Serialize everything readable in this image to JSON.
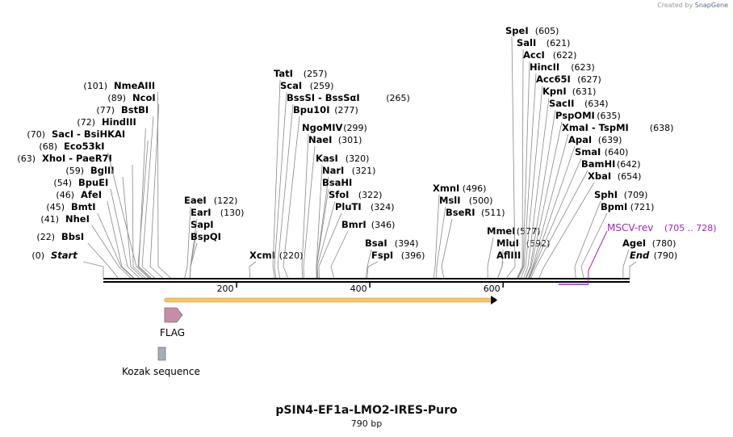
{
  "credit": {
    "prefix": "Created by",
    "brand": "SnapGene"
  },
  "plasmid": {
    "name": "pSIN4-EF1a-LMO2-IRES-Puro",
    "length_label": "790 bp",
    "length": 790
  },
  "axis": {
    "ticks": [
      200,
      400,
      600
    ]
  },
  "enzymes": [
    {
      "name": "Start",
      "pos": "(0)",
      "bp": 0,
      "side": "L",
      "italic": true
    },
    {
      "name": "BbsI",
      "pos": "(22)",
      "bp": 22,
      "side": "L"
    },
    {
      "name": "NheI",
      "pos": "(41)",
      "bp": 41,
      "side": "L"
    },
    {
      "name": "BmtI",
      "pos": "(45)",
      "bp": 45,
      "side": "L"
    },
    {
      "name": "AfeI",
      "pos": "(46)",
      "bp": 46,
      "side": "L"
    },
    {
      "name": "BpuEI",
      "pos": "(54)",
      "bp": 54,
      "side": "L"
    },
    {
      "name": "BglII",
      "pos": "(59)",
      "bp": 59,
      "side": "L"
    },
    {
      "name": "XhoI  -  PaeR7I",
      "pos": "(63)",
      "bp": 63,
      "side": "L"
    },
    {
      "name": "Eco53kI",
      "pos": "(68)",
      "bp": 68,
      "side": "L"
    },
    {
      "name": "SacI  -  BsiHKAI",
      "pos": "(70)",
      "bp": 70,
      "side": "L"
    },
    {
      "name": "HindIII",
      "pos": "(72)",
      "bp": 72,
      "side": "L"
    },
    {
      "name": "BstBI",
      "pos": "(77)",
      "bp": 77,
      "side": "L"
    },
    {
      "name": "NcoI",
      "pos": "(89)",
      "bp": 89,
      "side": "L"
    },
    {
      "name": "NmeAIII",
      "pos": "(101)",
      "bp": 101,
      "side": "L"
    },
    {
      "name": "EaeI",
      "pos": "(122)",
      "bp": 122,
      "side": "R"
    },
    {
      "name": "EarI",
      "pos": "(130)",
      "bp": 130,
      "side": "R"
    },
    {
      "name": "SapI",
      "pos": "",
      "bp": 130,
      "side": "R"
    },
    {
      "name": "BspQI",
      "pos": "",
      "bp": 130,
      "side": "R"
    },
    {
      "name": "XcmI",
      "pos": "(220)",
      "bp": 220,
      "side": "R"
    },
    {
      "name": "TatI",
      "pos": "(257)",
      "bp": 257,
      "side": "R"
    },
    {
      "name": "ScaI",
      "pos": "(259)",
      "bp": 259,
      "side": "R"
    },
    {
      "name": "BssSI  -  BssSαI",
      "pos": "(265)",
      "bp": 265,
      "side": "R"
    },
    {
      "name": "Bpu10I",
      "pos": "(277)",
      "bp": 277,
      "side": "R"
    },
    {
      "name": "NgoMIV",
      "pos": "(299)",
      "bp": 299,
      "side": "R"
    },
    {
      "name": "NaeI",
      "pos": "(301)",
      "bp": 301,
      "side": "R"
    },
    {
      "name": "KasI",
      "pos": "(320)",
      "bp": 320,
      "side": "R"
    },
    {
      "name": "NarI",
      "pos": "(321)",
      "bp": 321,
      "side": "R"
    },
    {
      "name": "BsaHI",
      "pos": "",
      "bp": 321,
      "side": "R"
    },
    {
      "name": "SfoI",
      "pos": "(322)",
      "bp": 322,
      "side": "R"
    },
    {
      "name": "PluTI",
      "pos": "(324)",
      "bp": 324,
      "side": "R"
    },
    {
      "name": "BmrI",
      "pos": "(346)",
      "bp": 346,
      "side": "R"
    },
    {
      "name": "BsaI",
      "pos": "(394)",
      "bp": 394,
      "side": "R"
    },
    {
      "name": "FspI",
      "pos": "(396)",
      "bp": 396,
      "side": "R"
    },
    {
      "name": "XmnI",
      "pos": "(496)",
      "bp": 496,
      "side": "R"
    },
    {
      "name": "MslI",
      "pos": "(500)",
      "bp": 500,
      "side": "R"
    },
    {
      "name": "BseRI",
      "pos": "(511)",
      "bp": 511,
      "side": "R"
    },
    {
      "name": "MmeI",
      "pos": "(577)",
      "bp": 577,
      "side": "R"
    },
    {
      "name": "MluI",
      "pos": "(592)",
      "bp": 592,
      "side": "R"
    },
    {
      "name": "AflIII",
      "pos": "",
      "bp": 592,
      "side": "R"
    },
    {
      "name": "SpeI",
      "pos": "(605)",
      "bp": 605,
      "side": "R"
    },
    {
      "name": "SalI",
      "pos": "(621)",
      "bp": 621,
      "side": "R"
    },
    {
      "name": "AccI",
      "pos": "(622)",
      "bp": 622,
      "side": "R"
    },
    {
      "name": "HincII",
      "pos": "(623)",
      "bp": 623,
      "side": "R"
    },
    {
      "name": "Acc65I",
      "pos": "(627)",
      "bp": 627,
      "side": "R"
    },
    {
      "name": "KpnI",
      "pos": "(631)",
      "bp": 631,
      "side": "R"
    },
    {
      "name": "SacII",
      "pos": "(634)",
      "bp": 634,
      "side": "R"
    },
    {
      "name": "PspOMI",
      "pos": "(635)",
      "bp": 635,
      "side": "R"
    },
    {
      "name": "XmaI  -  TspMI",
      "pos": "(638)",
      "bp": 638,
      "side": "R"
    },
    {
      "name": "ApaI",
      "pos": "(639)",
      "bp": 639,
      "side": "R"
    },
    {
      "name": "SmaI",
      "pos": "(640)",
      "bp": 640,
      "side": "R"
    },
    {
      "name": "BamHI",
      "pos": "(642)",
      "bp": 642,
      "side": "R"
    },
    {
      "name": "XbaI",
      "pos": "(654)",
      "bp": 654,
      "side": "R"
    },
    {
      "name": "SphI",
      "pos": "(709)",
      "bp": 709,
      "side": "R"
    },
    {
      "name": "BpmI",
      "pos": "(721)",
      "bp": 721,
      "side": "R"
    },
    {
      "name": "AgeI",
      "pos": "(780)",
      "bp": 780,
      "side": "R"
    },
    {
      "name": "End",
      "pos": "(790)",
      "bp": 790,
      "side": "R",
      "italic": true
    }
  ],
  "primer": {
    "name": "MSCV-rev",
    "range": "(705 .. 728)",
    "start": 705,
    "end": 728,
    "color": "#a020c8"
  },
  "features": [
    {
      "name": "",
      "type": "orf",
      "start": 92,
      "end": 589,
      "color": "#f5c46a"
    },
    {
      "name": "FLAG",
      "type": "arrow",
      "start": 92,
      "end": 115,
      "color": "#c98ca8"
    },
    {
      "name": "Kozak sequence",
      "type": "box",
      "start": 83,
      "end": 92,
      "color": "#a8aeb8"
    }
  ]
}
